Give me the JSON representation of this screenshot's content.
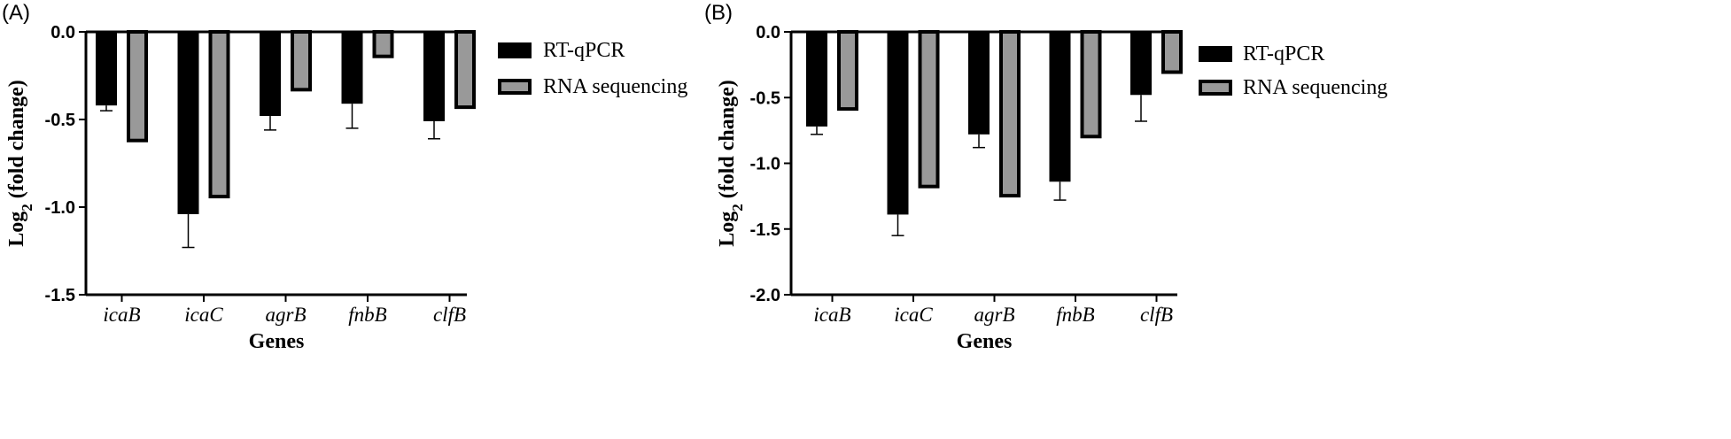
{
  "colors": {
    "rtqpcr": "#000000",
    "rnaseq": "#999999",
    "axis": "#000000"
  },
  "chart_data": [
    {
      "panel": "(A)",
      "type": "bar",
      "xlabel": "Genes",
      "ylabel_main": "Log",
      "ylabel_sub": "2",
      "ylabel_rest": " (fold change)",
      "categories": [
        "icaB",
        "icaC",
        "agrB",
        "fnbB",
        "clfB"
      ],
      "ylim": [
        -1.5,
        0
      ],
      "yticks": [
        0,
        -0.5,
        -1,
        -1.5
      ],
      "ytick_labels": [
        "0.0",
        "-0.5",
        "-1.0",
        "-1.5"
      ],
      "legend_position": "top-right",
      "series": [
        {
          "name": "RT-qPCR",
          "values": [
            -0.42,
            -1.04,
            -0.48,
            -0.41,
            -0.51
          ],
          "errors": [
            0.03,
            0.19,
            0.08,
            0.14,
            0.1
          ]
        },
        {
          "name": "RNA sequencing",
          "values": [
            -0.63,
            -0.95,
            -0.34,
            -0.15,
            -0.44
          ]
        }
      ]
    },
    {
      "panel": "(B)",
      "type": "bar",
      "xlabel": "Genes",
      "ylabel_main": "Log",
      "ylabel_sub": "2",
      "ylabel_rest": " (fold change)",
      "categories": [
        "icaB",
        "icaC",
        "agrB",
        "fnbB",
        "clfB"
      ],
      "ylim": [
        -2,
        0
      ],
      "yticks": [
        0,
        -0.5,
        -1,
        -1.5,
        -2
      ],
      "ytick_labels": [
        "0.0",
        "-0.5",
        "-1.0",
        "-1.5",
        "-2.0"
      ],
      "legend_position": "top-right",
      "series": [
        {
          "name": "RT-qPCR",
          "values": [
            -0.72,
            -1.39,
            -0.78,
            -1.14,
            -0.48
          ],
          "errors": [
            0.06,
            0.16,
            0.1,
            0.14,
            0.2
          ]
        },
        {
          "name": "RNA sequencing",
          "values": [
            -0.6,
            -1.19,
            -1.26,
            -0.81,
            -0.32
          ]
        }
      ]
    }
  ]
}
